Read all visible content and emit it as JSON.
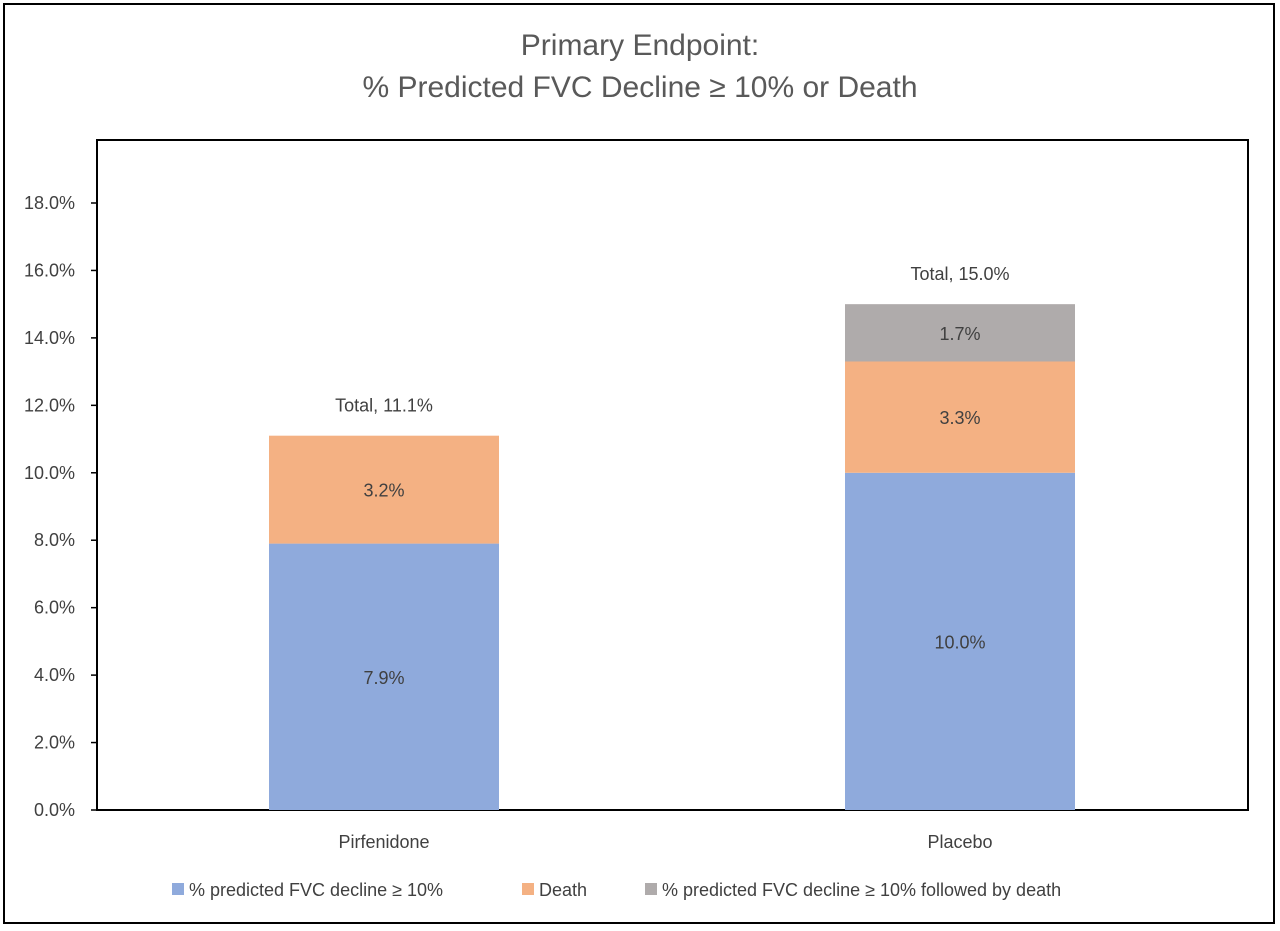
{
  "chart_data": {
    "type": "bar",
    "stacked": true,
    "title_line1": "Primary Endpoint:",
    "title_line2": "% Predicted FVC Decline ≥ 10% or Death",
    "categories": [
      "Pirfenidone",
      "Placebo"
    ],
    "series": [
      {
        "name": "% predicted FVC decline ≥ 10%",
        "color": "#8FAADC",
        "values": [
          7.9,
          10.0
        ],
        "labels": [
          "7.9%",
          "10.0%"
        ]
      },
      {
        "name": "Death",
        "color": "#F4B183",
        "values": [
          3.2,
          3.3
        ],
        "labels": [
          "3.2%",
          "3.3%"
        ]
      },
      {
        "name": "% predicted FVC decline ≥ 10% followed by death",
        "color": "#AFABAB",
        "values": [
          0,
          1.7
        ],
        "labels": [
          "",
          "1.7%"
        ]
      }
    ],
    "totals": [
      11.1,
      15.0
    ],
    "total_labels": [
      "Total, 11.1%",
      "Total, 15.0%"
    ],
    "y_ticks": [
      "0.0%",
      "2.0%",
      "4.0%",
      "6.0%",
      "8.0%",
      "10.0%",
      "12.0%",
      "14.0%",
      "16.0%",
      "18.0%"
    ],
    "ylim": [
      0,
      20
    ],
    "grid": false,
    "legend_position": "bottom"
  }
}
